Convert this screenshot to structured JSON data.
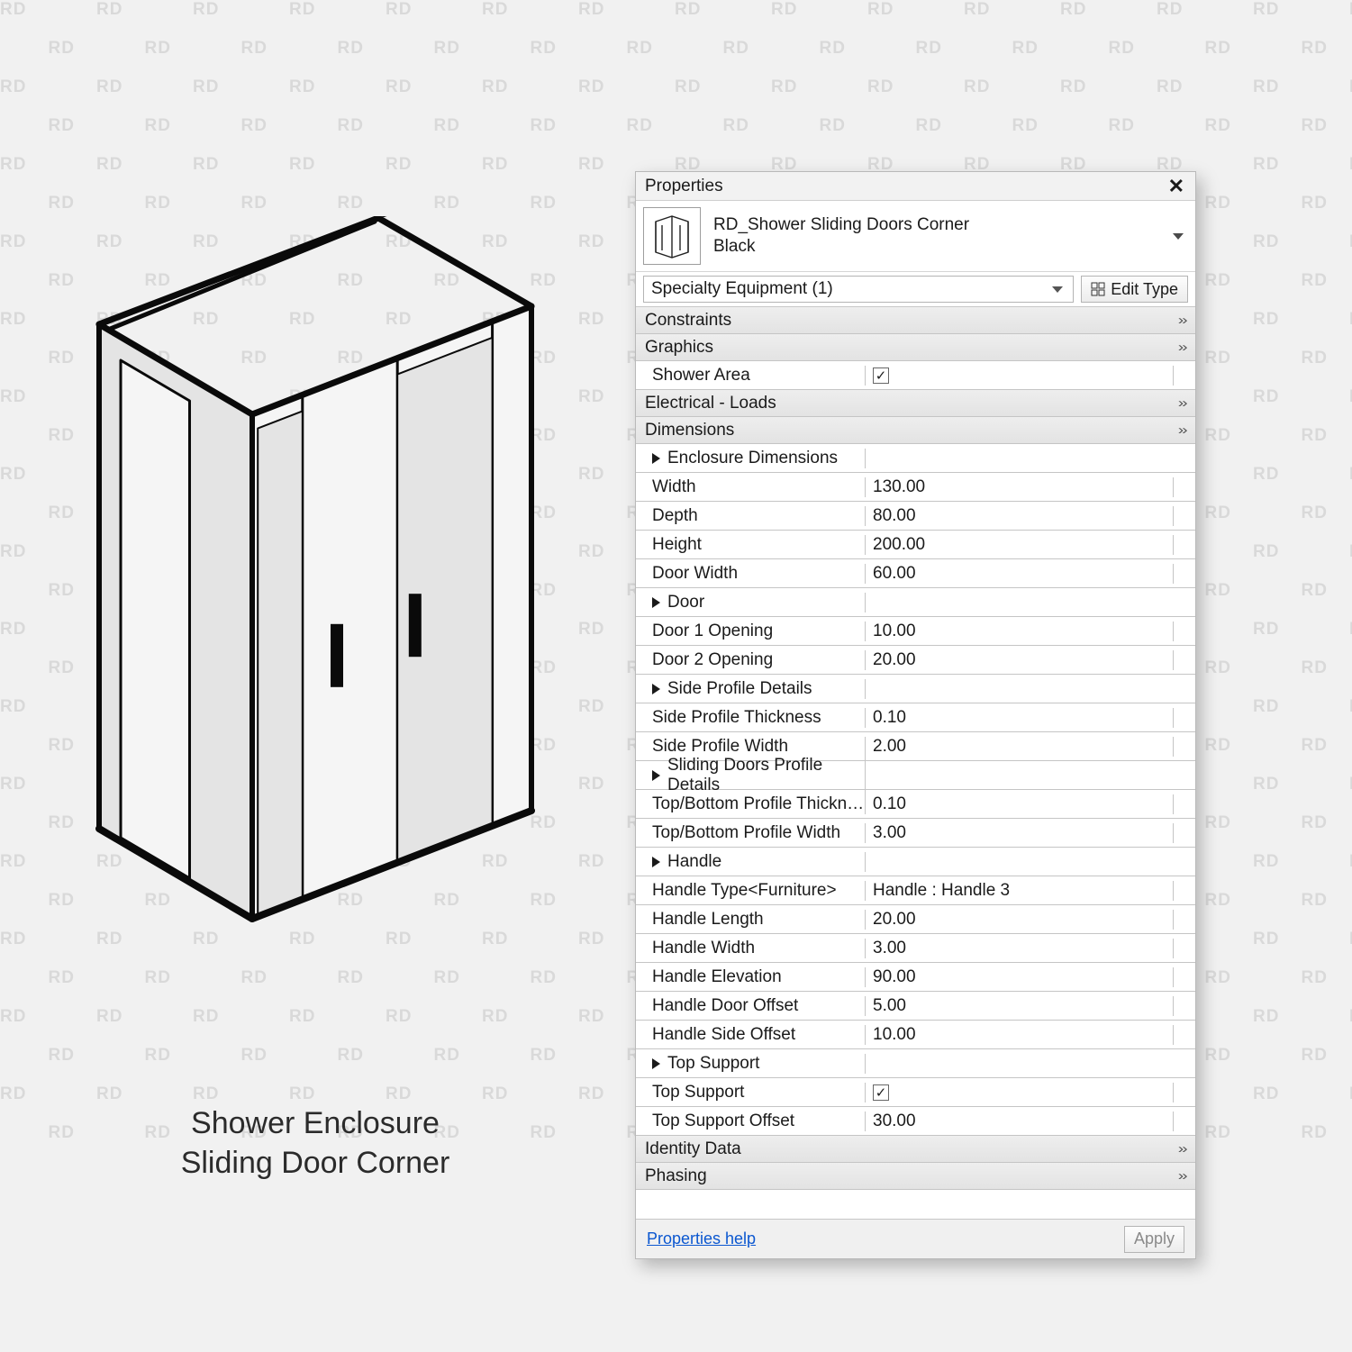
{
  "watermark_text": "RD",
  "caption_line1": "Shower Enclosure",
  "caption_line2": "Sliding Door Corner",
  "panel": {
    "title": "Properties",
    "family_name": "RD_Shower Sliding Doors Corner",
    "family_type": "Black",
    "selector_text": "Specialty Equipment (1)",
    "edit_type_label": "Edit Type",
    "help_link": "Properties help",
    "apply_label": "Apply"
  },
  "categories_top": [
    "Constraints",
    "Graphics"
  ],
  "shower_area_label": "Shower Area",
  "shower_area_checked": true,
  "categories_mid": [
    "Electrical - Loads",
    "Dimensions"
  ],
  "rows": [
    {
      "kind": "group",
      "label": "Enclosure Dimensions"
    },
    {
      "kind": "param",
      "label": "Width",
      "value": "130.00"
    },
    {
      "kind": "param",
      "label": "Depth",
      "value": "80.00"
    },
    {
      "kind": "param",
      "label": "Height",
      "value": "200.00"
    },
    {
      "kind": "param",
      "label": "Door Width",
      "value": "60.00"
    },
    {
      "kind": "group",
      "label": "Door"
    },
    {
      "kind": "param",
      "label": "Door 1 Opening",
      "value": "10.00"
    },
    {
      "kind": "param",
      "label": "Door 2 Opening",
      "value": "20.00"
    },
    {
      "kind": "group",
      "label": "Side Profile Details"
    },
    {
      "kind": "param",
      "label": "Side Profile Thickness",
      "value": "0.10"
    },
    {
      "kind": "param",
      "label": "Side Profile Width",
      "value": "2.00"
    },
    {
      "kind": "group",
      "label": "Sliding Doors Profile Details"
    },
    {
      "kind": "param",
      "label": "Top/Bottom Profile Thickness",
      "value": "0.10"
    },
    {
      "kind": "param",
      "label": "Top/Bottom Profile Width",
      "value": "3.00"
    },
    {
      "kind": "group",
      "label": "Handle"
    },
    {
      "kind": "param",
      "label": "Handle Type<Furniture>",
      "value": "Handle : Handle 3"
    },
    {
      "kind": "param",
      "label": "Handle Length",
      "value": "20.00"
    },
    {
      "kind": "param",
      "label": "Handle Width",
      "value": "3.00"
    },
    {
      "kind": "param",
      "label": "Handle Elevation",
      "value": "90.00"
    },
    {
      "kind": "param",
      "label": "Handle Door Offset",
      "value": "5.00"
    },
    {
      "kind": "param",
      "label": "Handle Side Offset",
      "value": "10.00"
    },
    {
      "kind": "group",
      "label": "Top Support"
    },
    {
      "kind": "check",
      "label": "Top Support",
      "checked": true
    },
    {
      "kind": "param",
      "label": "Top Support Offset",
      "value": "30.00"
    }
  ],
  "categories_bottom": [
    "Identity Data",
    "Phasing"
  ],
  "diagram": {
    "stroke": "#0a0a0a",
    "fill_glass": "#e4e4e4",
    "fill_glass_light": "#f5f5f5",
    "dash": "8 10"
  }
}
